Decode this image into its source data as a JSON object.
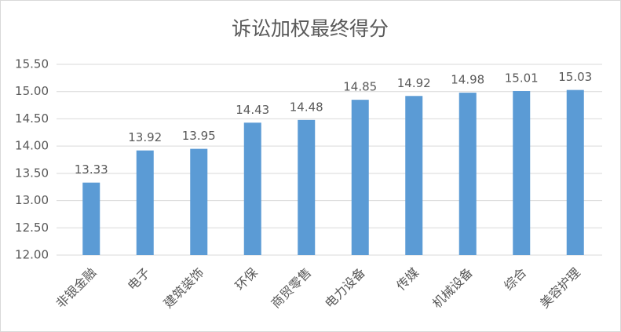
{
  "chart_data": {
    "type": "bar",
    "title": "诉讼加权最终得分",
    "categories": [
      "非银金融",
      "电子",
      "建筑装饰",
      "环保",
      "商贸零售",
      "电力设备",
      "传媒",
      "机械设备",
      "综合",
      "美容护理"
    ],
    "values": [
      13.33,
      13.92,
      13.95,
      14.43,
      14.48,
      14.85,
      14.92,
      14.98,
      15.01,
      15.03
    ],
    "color": "#5b9bd5",
    "ylim": [
      12,
      15.5
    ],
    "yticks": [
      {
        "value": 12,
        "label": "12.00"
      },
      {
        "value": 12.5,
        "label": "12.50"
      },
      {
        "value": 13,
        "label": "13.00"
      },
      {
        "value": 13.5,
        "label": "13.50"
      },
      {
        "value": 14,
        "label": "14.00"
      },
      {
        "value": 14.5,
        "label": "14.50"
      },
      {
        "value": 15,
        "label": "15.00"
      },
      {
        "value": 15.5,
        "label": "15.50"
      }
    ],
    "grid": true
  }
}
